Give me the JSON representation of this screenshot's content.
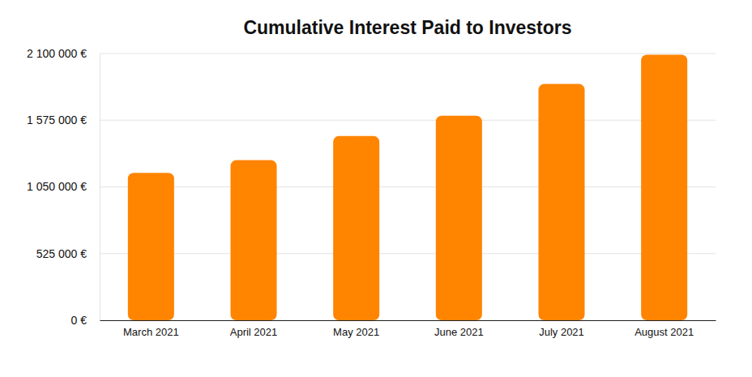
{
  "chart_data": {
    "type": "bar",
    "title": "Cumulative Interest Paid to Investors",
    "categories": [
      "March 2021",
      "April 2021",
      "May 2021",
      "June 2021",
      "July 2021",
      "August 2021"
    ],
    "values": [
      1160000,
      1260000,
      1450000,
      1610000,
      1860000,
      2090000
    ],
    "color": "#ff8400",
    "ylim": [
      0,
      2100000
    ],
    "yticks": [
      {
        "value": 0,
        "label": "0 €"
      },
      {
        "value": 525000,
        "label": "525 000 €"
      },
      {
        "value": 1050000,
        "label": "1 050 000 €"
      },
      {
        "value": 1575000,
        "label": "1 575 000 €"
      },
      {
        "value": 2100000,
        "label": "2 100 000 €"
      }
    ],
    "grid": true
  }
}
